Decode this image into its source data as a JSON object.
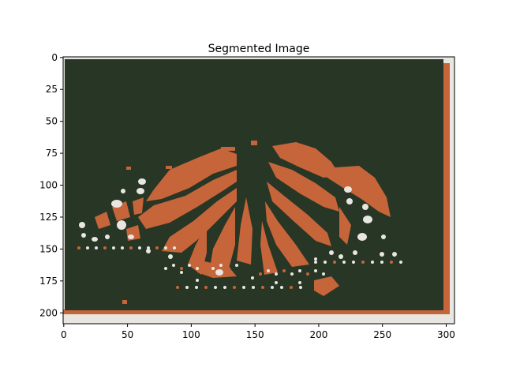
{
  "title": "Segmented Image",
  "image": {
    "width": 307,
    "height": 209,
    "cluster_colors": {
      "background": "#283625",
      "wing_orange": "#c6653a",
      "white_spots": "#e9e6e1"
    }
  },
  "axes": {
    "xlim": [
      -0.5,
      306.5
    ],
    "ylim": [
      208.5,
      -0.5
    ],
    "x_ticks": [
      0,
      50,
      100,
      150,
      200,
      250,
      300
    ],
    "y_ticks": [
      0,
      25,
      50,
      75,
      100,
      125,
      150,
      175,
      200
    ]
  }
}
